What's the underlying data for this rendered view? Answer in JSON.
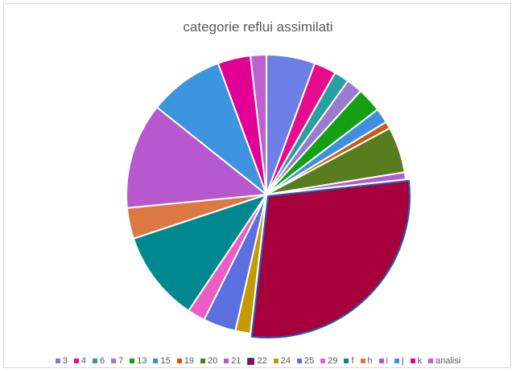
{
  "chart_data": {
    "type": "pie",
    "title": "categorie reflui assimilati",
    "legend_position": "bottom",
    "selected_slice": "22",
    "categories": [
      "3",
      "4",
      "6",
      "7",
      "13",
      "15",
      "19",
      "20",
      "21",
      "22",
      "24",
      "25",
      "29",
      "f",
      "h",
      "i",
      "j",
      "k",
      "analisi"
    ],
    "values": [
      5.5,
      2.5,
      1.7,
      1.8,
      2.8,
      1.7,
      0.8,
      5.2,
      0.8,
      28.0,
      1.7,
      3.7,
      2.0,
      10.3,
      3.5,
      12.0,
      8.5,
      3.7,
      1.8
    ],
    "colors": [
      "#6b7fe6",
      "#e60c8c",
      "#2a9f9f",
      "#9a7bcd",
      "#13a013",
      "#3e8fe0",
      "#cc5a15",
      "#577d1e",
      "#b55ad4",
      "#a8003c",
      "#c49a00",
      "#5b6fe0",
      "#ec5dc8",
      "#008890",
      "#dd7843",
      "#b858cf",
      "#3d95df",
      "#e20094",
      "#c060d0"
    ]
  }
}
